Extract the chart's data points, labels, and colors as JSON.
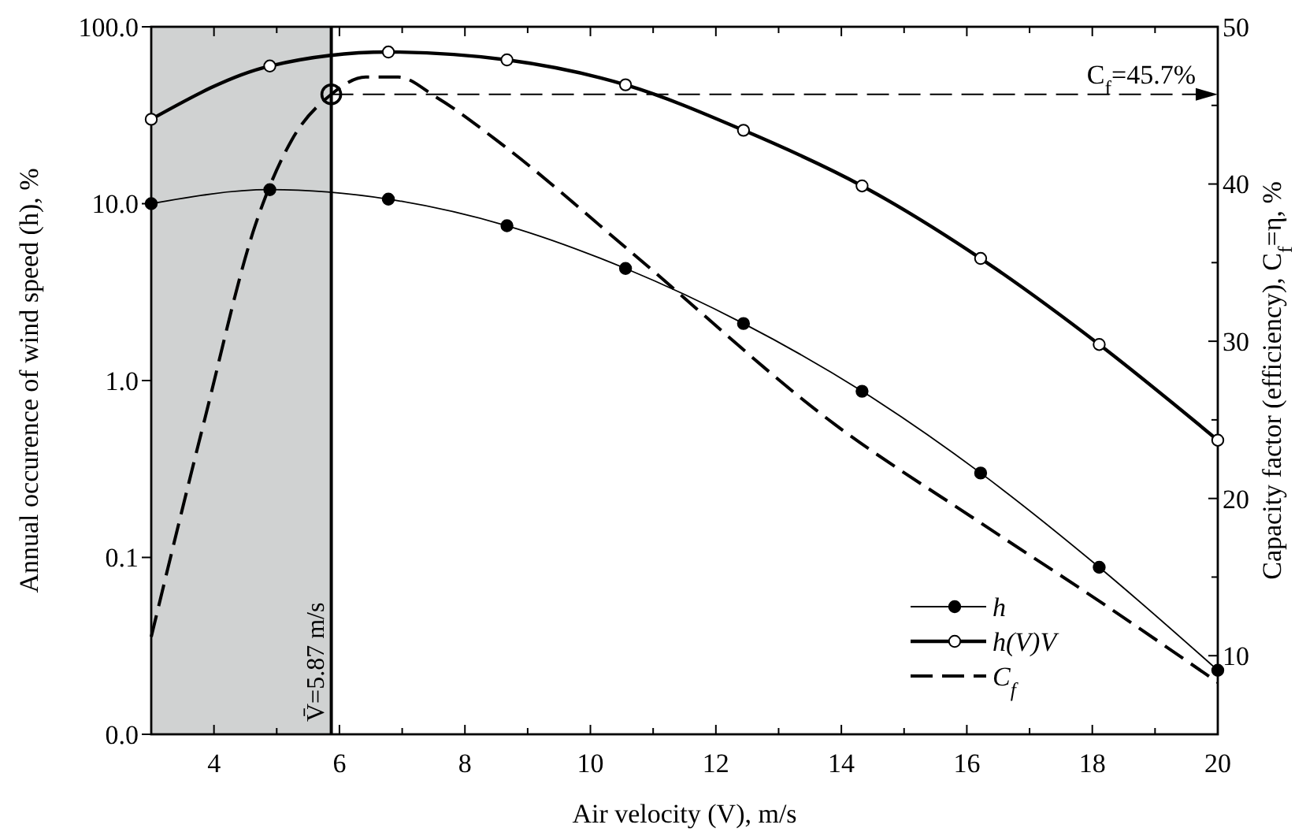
{
  "chart_data": {
    "type": "line",
    "xlabel": "Air velocity (V), m/s",
    "ylabel": "Annual occurence of wind speed (h), %",
    "y2label": "Capacity factor (efficiency), C$_{f}$=η, %",
    "xlim": [
      3,
      20
    ],
    "xticks": [
      4,
      {
        "value": 5,
        "label": null
      },
      6,
      {
        "value": 7,
        "label": null
      },
      8,
      {
        "value": 9,
        "label": null
      },
      10,
      {
        "value": 11,
        "label": null
      },
      12,
      {
        "value": 13,
        "label": null
      },
      14,
      {
        "value": 15,
        "label": null
      },
      16,
      {
        "value": 17,
        "label": null
      },
      18,
      {
        "value": 19,
        "label": null
      },
      20
    ],
    "ylim": [
      0.01,
      100
    ],
    "yticks": [
      {
        "value": 0.01,
        "label": "0.0"
      },
      0.1,
      {
        "value": 1,
        "label": "1.0"
      },
      {
        "value": 10,
        "label": "10.0"
      },
      {
        "value": 100,
        "label": "100.0"
      }
    ],
    "log": true,
    "y2lim": [
      5,
      50
    ],
    "y2ticks": [
      10,
      {
        "value": 15,
        "label": null
      },
      20,
      {
        "value": 25,
        "label": null
      },
      30,
      {
        "value": 35,
        "label": null
      },
      40,
      {
        "value": 45,
        "label": null
      },
      50
    ],
    "series": [
      {
        "name": "h",
        "color": "#000000",
        "marker": "circle",
        "x": [
          3,
          4.89,
          6.78,
          8.67,
          10.56,
          12.44,
          14.33,
          16.22,
          18.11,
          20
        ],
        "values": [
          10,
          12,
          10.6,
          7.5,
          4.3,
          2.1,
          0.87,
          0.3,
          0.088,
          0.023
        ]
      },
      {
        "name": "h(V)V",
        "color": "#000000",
        "marker": "circle",
        "x": [
          3,
          4.89,
          6.78,
          8.67,
          10.56,
          12.44,
          14.33,
          16.22,
          18.11,
          20
        ],
        "values": [
          30,
          60,
          72,
          65,
          47,
          26,
          12.6,
          4.9,
          1.6,
          0.46
        ]
      },
      {
        "name": "C$_{f}$",
        "color": "#000000",
        "marker": "none",
        "line_style": "dashed",
        "axis": "y2",
        "x": [
          3,
          3.85,
          4.66,
          5.24,
          5.87,
          6.42,
          6.94,
          7.55,
          8.63,
          10.64,
          13.9,
          16.2,
          18.1,
          20
        ],
        "values": [
          11.2,
          25,
          37.4,
          42.8,
          45.7,
          46.8,
          46.8,
          45.5,
          42.4,
          35.7,
          24.7,
          18.5,
          13.5,
          8.3
        ]
      }
    ],
    "ref_lines": [
      {
        "axis": "x",
        "value": 5.87,
        "label": "V̄=5.87 m/s"
      },
      {
        "axis": "y2",
        "value": 45.7,
        "label": "C$_{f}$=45.7%",
        "line_style": "dashed"
      }
    ],
    "bands": [
      {
        "axis": "x",
        "from": 3,
        "to": 5.87,
        "color": "#d0d2d2"
      }
    ],
    "legend": "bottom right",
    "grid": false
  }
}
